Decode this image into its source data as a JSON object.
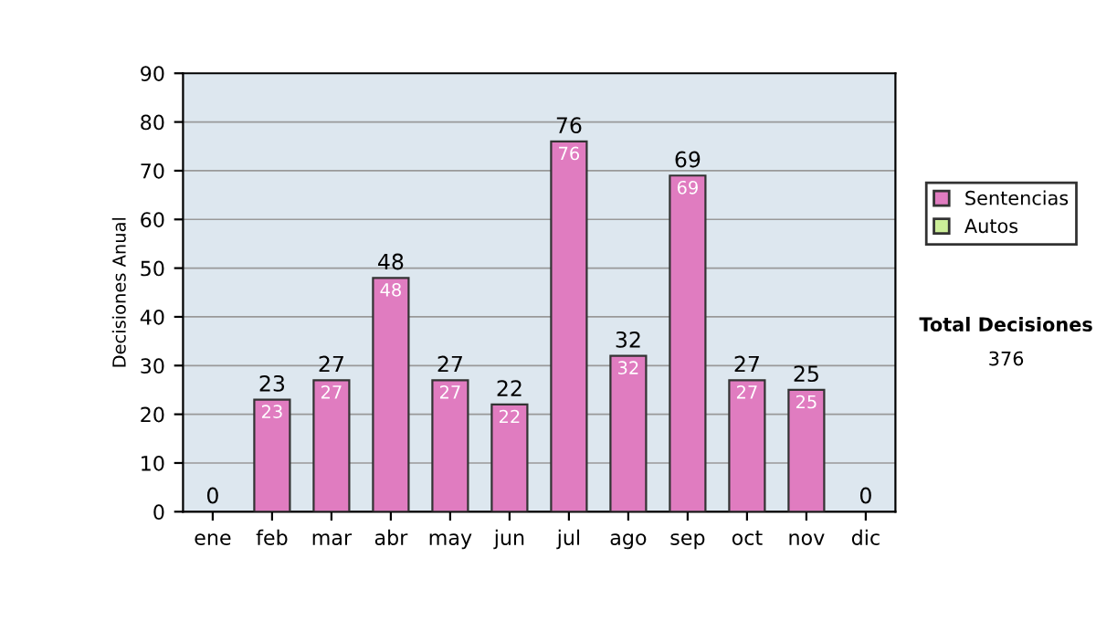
{
  "chart_data": {
    "type": "bar",
    "stacked": true,
    "ylabel": "Decisiones Anual",
    "categories": [
      "ene",
      "feb",
      "mar",
      "abr",
      "may",
      "jun",
      "jul",
      "ago",
      "sep",
      "oct",
      "nov",
      "dic"
    ],
    "series": [
      {
        "name": "Sentencias",
        "color": "#e07cc0",
        "values": [
          0,
          23,
          27,
          48,
          27,
          22,
          76,
          32,
          69,
          27,
          25,
          0
        ],
        "value_labels": [
          null,
          "23",
          "27",
          "48",
          "27",
          "22",
          "76",
          "32",
          "69",
          "27",
          "25",
          null
        ]
      },
      {
        "name": "Autos",
        "color": "#ccee99",
        "values": [
          0,
          0,
          0,
          0,
          0,
          0,
          0,
          0,
          0,
          0,
          0,
          0
        ]
      }
    ],
    "totals": [
      "0",
      "23",
      "27",
      "48",
      "27",
      "22",
      "76",
      "32",
      "69",
      "27",
      "25",
      "0"
    ],
    "ylim": [
      0,
      90
    ],
    "yticks": [
      0,
      10,
      20,
      30,
      40,
      50,
      60,
      70,
      80,
      90
    ],
    "grid": "y",
    "legend": "right",
    "annotations": [
      "Total Decisiones",
      "376"
    ]
  }
}
